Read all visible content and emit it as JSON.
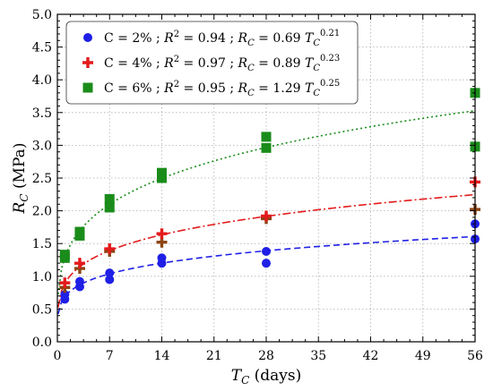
{
  "chart_data": {
    "type": "scatter",
    "xlabel": "T_C (days)",
    "ylabel": "R_C (MPa)",
    "xlim": [
      0,
      56
    ],
    "ylim": [
      0,
      5.0
    ],
    "xticks": [
      0,
      7,
      14,
      21,
      28,
      35,
      42,
      49,
      56
    ],
    "yticks": [
      0.0,
      0.5,
      1.0,
      1.5,
      2.0,
      2.5,
      3.0,
      3.5,
      4.0,
      4.5,
      5.0
    ],
    "grid": "dotted",
    "legend_position": "top-left",
    "series": [
      {
        "name": "C = 2% ; R² = 0.94 ; R_C = 0.69 T_C^0.21",
        "legend": {
          "lead": "C = 2% ; ",
          "r2": "0.94",
          "coef": "0.69",
          "exp": "0.21"
        },
        "marker": "circle",
        "color": "#1f1fe6",
        "line_style": "dashed",
        "fit": {
          "a": 0.69,
          "b": 0.21
        },
        "points": [
          [
            1,
            0.65
          ],
          [
            1,
            0.72
          ],
          [
            3,
            0.84
          ],
          [
            3,
            0.92
          ],
          [
            7,
            0.95
          ],
          [
            7,
            1.05
          ],
          [
            14,
            1.2
          ],
          [
            14,
            1.28
          ],
          [
            28,
            1.2
          ],
          [
            28,
            1.38
          ],
          [
            56,
            1.57
          ],
          [
            56,
            1.8
          ]
        ]
      },
      {
        "name": "C = 4% ; R² = 0.97 ; R_C = 0.89 T_C^0.23",
        "legend": {
          "lead": "C = 4% ; ",
          "r2": "0.97",
          "coef": "0.89",
          "exp": "0.23"
        },
        "marker": "plus",
        "color": "#e41a1c",
        "alt_color": "#8b4513",
        "line_style": "dashdot",
        "fit": {
          "a": 0.89,
          "b": 0.23
        },
        "points": [
          [
            1,
            0.83
          ],
          [
            1,
            0.9
          ],
          [
            3,
            1.12
          ],
          [
            3,
            1.2
          ],
          [
            7,
            1.38
          ],
          [
            7,
            1.42
          ],
          [
            14,
            1.52
          ],
          [
            14,
            1.65
          ],
          [
            28,
            1.88
          ],
          [
            28,
            1.92
          ],
          [
            56,
            2.02
          ],
          [
            56,
            2.44
          ]
        ]
      },
      {
        "name": "C = 6% ; R² = 0.95 ; R_C = 1.29 T_C^0.25",
        "legend": {
          "lead": "C = 6% ; ",
          "r2": "0.95",
          "coef": "1.29",
          "exp": "0.25"
        },
        "marker": "square",
        "color": "#1a8c1a",
        "line_style": "dotted",
        "fit": {
          "a": 1.29,
          "b": 0.25
        },
        "points": [
          [
            1,
            1.28
          ],
          [
            1,
            1.33
          ],
          [
            3,
            1.62
          ],
          [
            3,
            1.68
          ],
          [
            7,
            2.05
          ],
          [
            7,
            2.18
          ],
          [
            14,
            2.5
          ],
          [
            14,
            2.58
          ],
          [
            28,
            2.96
          ],
          [
            28,
            3.13
          ],
          [
            56,
            2.98
          ],
          [
            56,
            3.8
          ]
        ]
      }
    ]
  }
}
